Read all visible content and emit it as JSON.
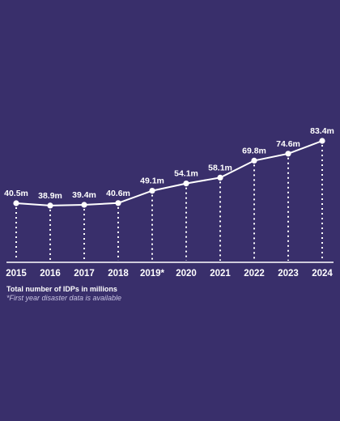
{
  "colors": {
    "background": "#392f6b",
    "line": "#ffffff",
    "caption_note": "#c9c4e4"
  },
  "chart_data": {
    "type": "line",
    "categories": [
      "2015",
      "2016",
      "2017",
      "2018",
      "2019*",
      "2020",
      "2021",
      "2022",
      "2023",
      "2024"
    ],
    "values": [
      40.5,
      38.9,
      39.4,
      40.6,
      49.1,
      54.1,
      58.1,
      69.8,
      74.6,
      83.4
    ],
    "value_labels": [
      "40.5m",
      "38.9m",
      "39.4m",
      "40.6m",
      "49.1m",
      "54.1m",
      "58.1m",
      "69.8m",
      "74.6m",
      "83.4m"
    ],
    "ylim": [
      0,
      83.4
    ],
    "grid": false,
    "drop_lines": "dotted"
  },
  "caption": {
    "main": "Total number of IDPs in millions",
    "note": "*First year disaster data is available"
  }
}
